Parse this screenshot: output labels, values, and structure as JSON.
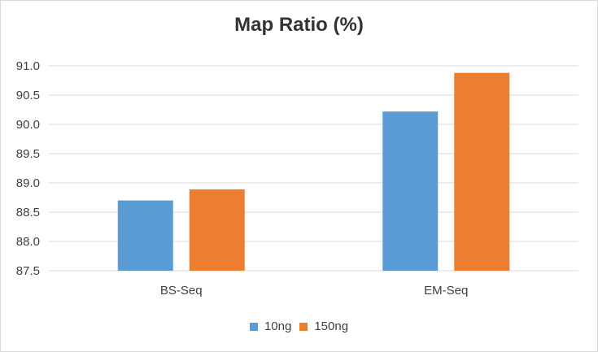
{
  "chart_data": {
    "type": "bar",
    "title": "Map Ratio (%)",
    "categories": [
      "BS-Seq",
      "EM-Seq"
    ],
    "series": [
      {
        "name": "10ng",
        "color": "#5b9bd5",
        "values": [
          88.7,
          90.22
        ]
      },
      {
        "name": "150ng",
        "color": "#ed7d31",
        "values": [
          88.89,
          90.88
        ]
      }
    ],
    "ylim": [
      87.5,
      91.0
    ],
    "yticks": [
      "87.5",
      "88.0",
      "88.5",
      "89.0",
      "89.5",
      "90.0",
      "90.5",
      "91.0"
    ],
    "grid": true,
    "legend_position": "bottom"
  }
}
